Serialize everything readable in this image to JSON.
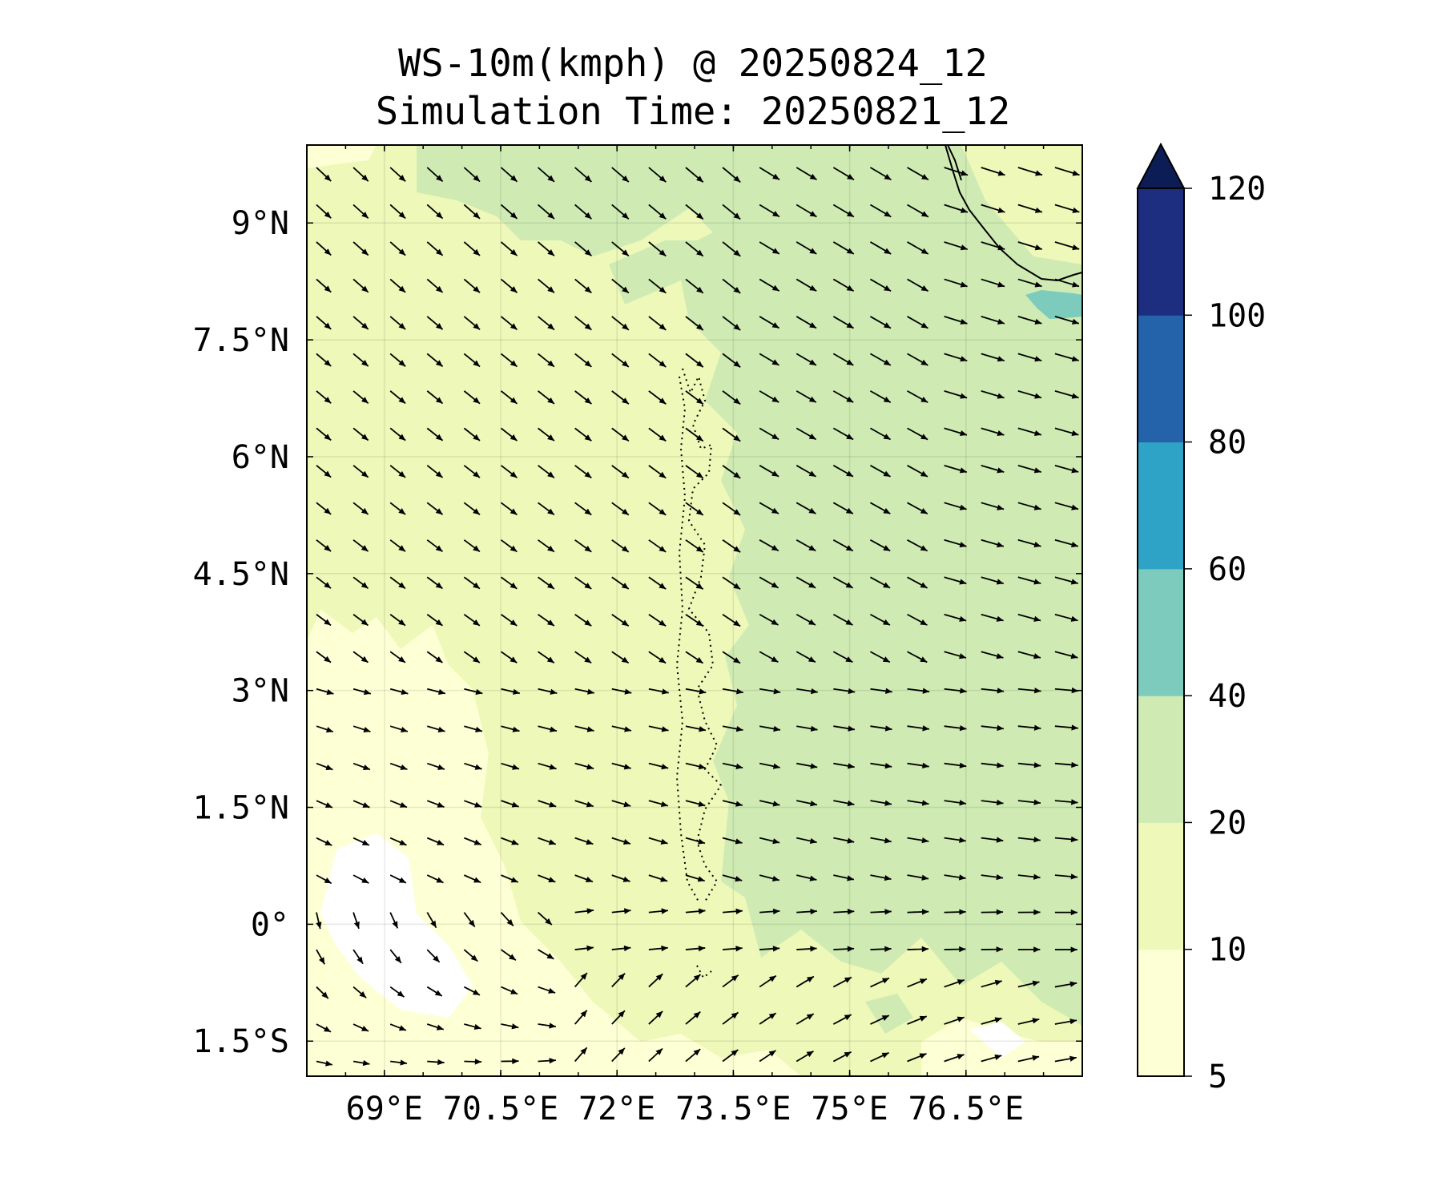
{
  "title": {
    "line1": "WS-10m(kmph) @ 20250824_12",
    "line2": "Simulation Time: 20250821_12"
  },
  "map": {
    "lon_range": [
      68.0,
      78.0
    ],
    "lat_range": [
      -1.95,
      10.0
    ],
    "lon_ticks": [
      {
        "value": 69.0,
        "label": "69°E"
      },
      {
        "value": 70.5,
        "label": "70.5°E"
      },
      {
        "value": 72.0,
        "label": "72°E"
      },
      {
        "value": 73.5,
        "label": "73.5°E"
      },
      {
        "value": 75.0,
        "label": "75°E"
      },
      {
        "value": 76.5,
        "label": "76.5°E"
      }
    ],
    "lat_ticks": [
      {
        "value": 9.0,
        "label": "9°N"
      },
      {
        "value": 7.5,
        "label": "7.5°N"
      },
      {
        "value": 6.0,
        "label": "6°N"
      },
      {
        "value": 4.5,
        "label": "4.5°N"
      },
      {
        "value": 3.0,
        "label": "3°N"
      },
      {
        "value": 1.5,
        "label": "1.5°N"
      },
      {
        "value": 0.0,
        "label": "0°"
      },
      {
        "value": -1.5,
        "label": "1.5°S"
      }
    ],
    "gridlines": true,
    "background_color": "#eef8b8"
  },
  "colorbar": {
    "levels": [
      5,
      10,
      20,
      40,
      60,
      80,
      100,
      120
    ],
    "colors": [
      "#fdffd4",
      "#eef8b8",
      "#cfebb3",
      "#7dcbbd",
      "#2ea3c6",
      "#2463aa",
      "#1d2e80"
    ],
    "extend_color": "#0c1c55",
    "extend": "max",
    "labels": [
      "5",
      "10",
      "20",
      "40",
      "60",
      "80",
      "100",
      "120"
    ]
  },
  "colors": {
    "calm": "#fdffd4",
    "band_10_20": "#eef8b8",
    "band_20_40": "#cfebb3",
    "band_40_60": "#7dcbbd",
    "arrow": "#000000",
    "coastline": "#000000"
  }
}
